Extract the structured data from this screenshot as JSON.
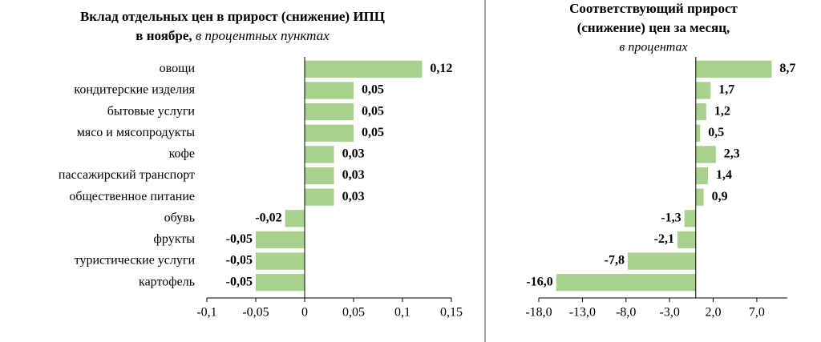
{
  "chart_data": [
    {
      "type": "barh",
      "title": [
        "Вклад отдельных цен в прирост (снижение) ИПЦ",
        "в ноябре,"
      ],
      "subtitle": "в процентных пунктах",
      "categories": [
        "овощи",
        "кондитерские изделия",
        "бытовые услуги",
        "мясо и мясопродукты",
        "кофе",
        "пассажирский транспорт",
        "общественное питание",
        "обувь",
        "фрукты",
        "туристические услуги",
        "картофель"
      ],
      "values": [
        0.12,
        0.05,
        0.05,
        0.05,
        0.03,
        0.03,
        0.03,
        -0.02,
        -0.05,
        -0.05,
        -0.05
      ],
      "value_labels": [
        "0,12",
        "0,05",
        "0,05",
        "0,05",
        "0,03",
        "0,03",
        "0,03",
        "-0,02",
        "-0,05",
        "-0,05",
        "-0,05"
      ],
      "color": "#a9d18e",
      "xlim": [
        -0.1,
        0.15
      ],
      "xticks": [
        {
          "value": -0.1,
          "label": "-0,1"
        },
        {
          "value": -0.05,
          "label": "-0,05"
        },
        0,
        {
          "value": 0.05,
          "label": "0,05"
        },
        {
          "value": 0.1,
          "label": "0,1"
        },
        {
          "value": 0.15,
          "label": "0,15"
        }
      ]
    },
    {
      "type": "barh",
      "title": [
        "Соответствующий прирост",
        "(снижение) цен за месяц,"
      ],
      "subtitle": "в процентах",
      "values": [
        8.7,
        1.7,
        1.2,
        0.5,
        2.3,
        1.4,
        0.9,
        -1.3,
        -2.1,
        -7.8,
        -16.0
      ],
      "value_labels": [
        "8,7",
        "1,7",
        "1,2",
        "0,5",
        "2,3",
        "1,4",
        "0,9",
        "-1,3",
        "-2,1",
        "-7,8",
        "-16,0"
      ],
      "color": "#a9d18e",
      "xlim": [
        -18,
        10.5
      ],
      "xticks": [
        {
          "value": -18,
          "label": "-18,0"
        },
        {
          "value": -13,
          "label": "-13,0"
        },
        {
          "value": -8,
          "label": "-8,0"
        },
        {
          "value": -3,
          "label": "-3,0"
        },
        {
          "value": 2,
          "label": "2,0"
        },
        {
          "value": 7,
          "label": "7,0"
        }
      ]
    }
  ]
}
